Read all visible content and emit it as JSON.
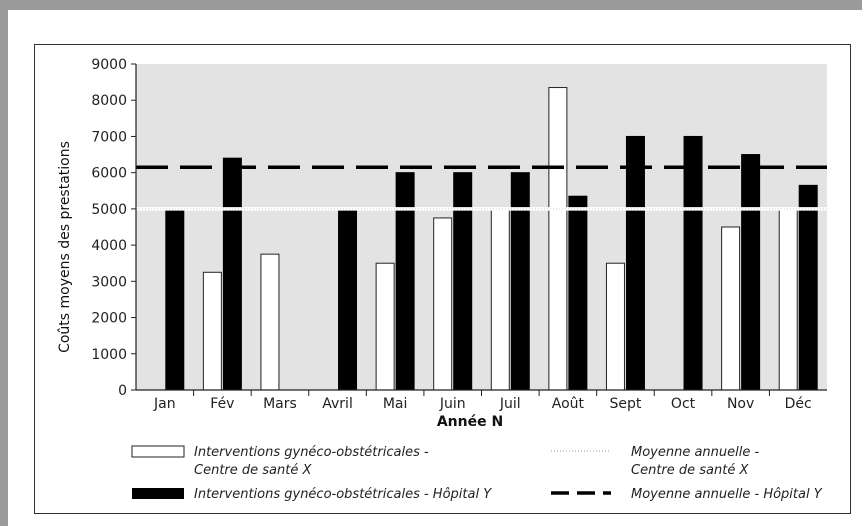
{
  "chart_data": {
    "type": "bar",
    "categories": [
      "Jan",
      "Fév",
      "Mars",
      "Avril",
      "Mai",
      "Juin",
      "Juil",
      "Août",
      "Sept",
      "Oct",
      "Nov",
      "Déc"
    ],
    "series": [
      {
        "name": "Interventions gynéco-obstétricales - Centre de santé X",
        "values": [
          null,
          3250,
          3750,
          null,
          3500,
          4750,
          5000,
          8350,
          3500,
          null,
          4500,
          5000
        ],
        "color": "#ffffff"
      },
      {
        "name": "Interventions gynéco-obstétricales - Hôpital Y",
        "values": [
          5000,
          6400,
          null,
          5000,
          6000,
          6000,
          6000,
          5350,
          7000,
          7000,
          6500,
          5650
        ],
        "color": "#000000"
      }
    ],
    "reference_lines": [
      {
        "name": "Moyenne annuelle - Centre de santé X",
        "value": 5000,
        "style": "dotted",
        "color": "#ffffff"
      },
      {
        "name": "Moyenne annuelle - Hôpital Y",
        "value": 6150,
        "style": "dashed",
        "color": "#000000"
      }
    ],
    "title": "",
    "xlabel": "Année N",
    "ylabel": "Coûts moyens des prestations",
    "ylim": [
      0,
      9000
    ],
    "yticks": [
      0,
      1000,
      2000,
      3000,
      4000,
      5000,
      6000,
      7000,
      8000,
      9000
    ],
    "grid": false,
    "plot_background": "#e3e3e3",
    "legend": {
      "placement": "bottom",
      "entries": [
        {
          "key": "white-bar",
          "lines": [
            "Interventions gynéco-obstétricales -",
            "Centre de santé X"
          ]
        },
        {
          "key": "black-bar",
          "lines": [
            "Interventions gynéco-obstétricales - Hôpital Y"
          ]
        },
        {
          "key": "dotted-line",
          "lines": [
            "Moyenne annuelle  -",
            "Centre de santé X"
          ]
        },
        {
          "key": "dashed-line",
          "lines": [
            "Moyenne annuelle - Hôpital Y"
          ]
        }
      ]
    }
  }
}
